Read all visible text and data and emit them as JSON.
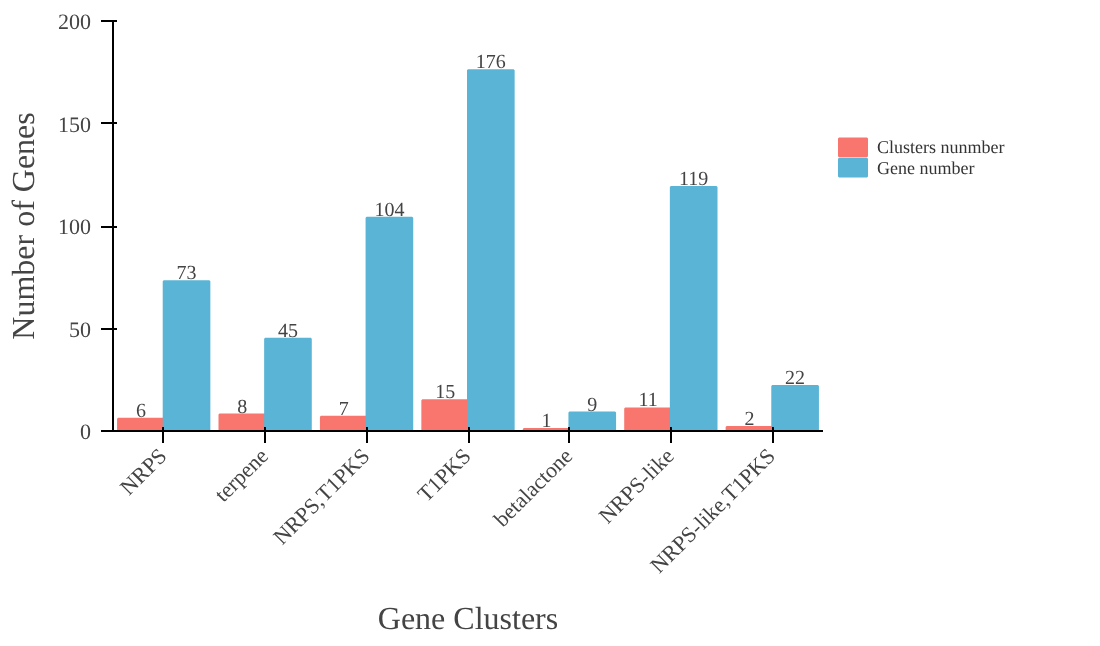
{
  "chart_data": {
    "type": "bar",
    "xlabel": "Gene Clusters",
    "ylabel": "Number of Genes",
    "categories": [
      "NRPS",
      "terpene",
      "NRPS,T1PKS",
      "T1PKS",
      "betalactone",
      "NRPS-like",
      "NRPS-like,T1PKS"
    ],
    "series": [
      {
        "name": "Clusters nunmber",
        "color": "#f8766d",
        "values": [
          6,
          8,
          7,
          15,
          1,
          11,
          2
        ]
      },
      {
        "name": "Gene number",
        "color": "#5ab4d6",
        "values": [
          73,
          45,
          104,
          176,
          9,
          119,
          22
        ]
      }
    ],
    "ylim": [
      0,
      200
    ],
    "yticks": [
      0,
      50,
      100,
      150,
      200
    ],
    "data_labels": true,
    "legend": "right",
    "grid": false
  }
}
